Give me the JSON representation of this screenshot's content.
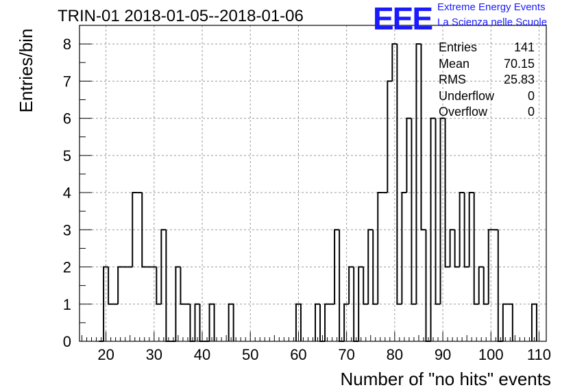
{
  "title": "TRIN-01 2018-01-05--2018-01-06",
  "logo": {
    "mark": "EEE",
    "line1": "Extreme Energy Events",
    "line2": "La Scienza nelle Scuole"
  },
  "stats": [
    {
      "label": "Entries",
      "value": "141"
    },
    {
      "label": "Mean",
      "value": "70.15"
    },
    {
      "label": "RMS",
      "value": "25.83"
    },
    {
      "label": "Underflow",
      "value": "0"
    },
    {
      "label": "Overflow",
      "value": "0"
    }
  ],
  "colors": {
    "line": "#000000",
    "grid": "#9a9a9a",
    "logo": "#1a1aff"
  },
  "chart_data": {
    "type": "histogram",
    "xlabel": "Number of \"no hits\" events",
    "ylabel": "Entries/bin",
    "xlim": [
      14.5,
      111.5
    ],
    "ylim": [
      0,
      8.5
    ],
    "grid": true,
    "xticks": [
      20,
      30,
      40,
      50,
      60,
      70,
      80,
      90,
      100,
      110
    ],
    "yticks": [
      0,
      1,
      2,
      3,
      4,
      5,
      6,
      7,
      8
    ],
    "bins": [
      {
        "x": 18.5,
        "y": 0
      },
      {
        "x": 19.5,
        "y": 2
      },
      {
        "x": 20.5,
        "y": 1
      },
      {
        "x": 21.5,
        "y": 1
      },
      {
        "x": 22.5,
        "y": 2
      },
      {
        "x": 23.5,
        "y": 2
      },
      {
        "x": 24.5,
        "y": 2
      },
      {
        "x": 25.5,
        "y": 4
      },
      {
        "x": 26.5,
        "y": 4
      },
      {
        "x": 27.5,
        "y": 2
      },
      {
        "x": 28.5,
        "y": 2
      },
      {
        "x": 29.5,
        "y": 2
      },
      {
        "x": 30.5,
        "y": 1
      },
      {
        "x": 31.5,
        "y": 3
      },
      {
        "x": 32.5,
        "y": 0
      },
      {
        "x": 33.5,
        "y": 0
      },
      {
        "x": 34.5,
        "y": 2
      },
      {
        "x": 35.5,
        "y": 1
      },
      {
        "x": 36.5,
        "y": 1
      },
      {
        "x": 37.5,
        "y": 0
      },
      {
        "x": 38.5,
        "y": 1
      },
      {
        "x": 39.5,
        "y": 0
      },
      {
        "x": 40.5,
        "y": 0
      },
      {
        "x": 41.5,
        "y": 1
      },
      {
        "x": 45.5,
        "y": 1
      },
      {
        "x": 59.5,
        "y": 1
      },
      {
        "x": 63.5,
        "y": 1
      },
      {
        "x": 64.5,
        "y": 0
      },
      {
        "x": 65.5,
        "y": 1
      },
      {
        "x": 66.5,
        "y": 1
      },
      {
        "x": 67.5,
        "y": 3
      },
      {
        "x": 68.5,
        "y": 0
      },
      {
        "x": 69.5,
        "y": 1
      },
      {
        "x": 70.5,
        "y": 2
      },
      {
        "x": 71.5,
        "y": 0
      },
      {
        "x": 72.5,
        "y": 2
      },
      {
        "x": 73.5,
        "y": 1
      },
      {
        "x": 74.5,
        "y": 3
      },
      {
        "x": 75.5,
        "y": 1
      },
      {
        "x": 76.5,
        "y": 4
      },
      {
        "x": 77.5,
        "y": 4
      },
      {
        "x": 78.5,
        "y": 7
      },
      {
        "x": 79.5,
        "y": 8
      },
      {
        "x": 80.5,
        "y": 1
      },
      {
        "x": 81.5,
        "y": 4
      },
      {
        "x": 82.5,
        "y": 6
      },
      {
        "x": 83.5,
        "y": 1
      },
      {
        "x": 84.5,
        "y": 8
      },
      {
        "x": 85.5,
        "y": 3
      },
      {
        "x": 86.5,
        "y": 0
      },
      {
        "x": 87.5,
        "y": 6
      },
      {
        "x": 88.5,
        "y": 1
      },
      {
        "x": 89.5,
        "y": 6
      },
      {
        "x": 90.5,
        "y": 2
      },
      {
        "x": 91.5,
        "y": 3
      },
      {
        "x": 92.5,
        "y": 2
      },
      {
        "x": 93.5,
        "y": 4
      },
      {
        "x": 94.5,
        "y": 2
      },
      {
        "x": 95.5,
        "y": 4
      },
      {
        "x": 96.5,
        "y": 1
      },
      {
        "x": 97.5,
        "y": 2
      },
      {
        "x": 98.5,
        "y": 1
      },
      {
        "x": 99.5,
        "y": 3
      },
      {
        "x": 100.5,
        "y": 3
      },
      {
        "x": 101.5,
        "y": 0
      },
      {
        "x": 102.5,
        "y": 1
      },
      {
        "x": 103.5,
        "y": 1
      },
      {
        "x": 108.5,
        "y": 1
      }
    ]
  }
}
